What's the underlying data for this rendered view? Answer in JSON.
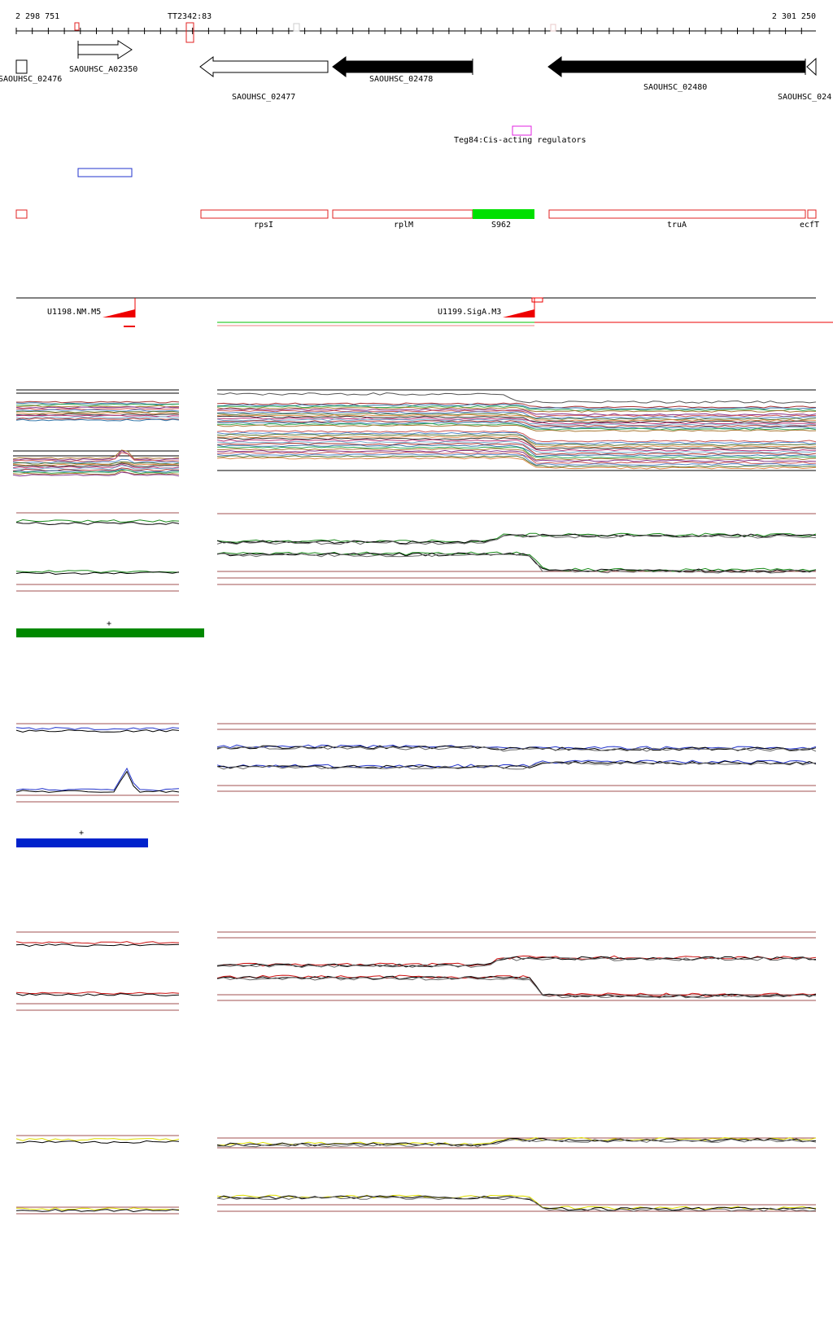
{
  "ruler": {
    "start_label": "2 298 751",
    "end_label": "2 301 250",
    "marker_label": "TT2342:83"
  },
  "genes": [
    {
      "id": "g-02476",
      "label": "SAOUHSC_02476"
    },
    {
      "id": "g-a02350",
      "label": "SAOUHSC_A02350"
    },
    {
      "id": "g-02477",
      "label": "SAOUHSC_02477"
    },
    {
      "id": "g-02478",
      "label": "SAOUHSC_02478"
    },
    {
      "id": "g-02480",
      "label": "SAOUHSC_02480"
    },
    {
      "id": "g-0248x",
      "label": "SAOUHSC_024"
    }
  ],
  "regulator": {
    "label": "Teg84:Cis-acting regulators",
    "color": "#e020e0"
  },
  "annotations": [
    {
      "label": "rpsI"
    },
    {
      "label": "rplM"
    },
    {
      "label": "S962",
      "color": "#00e000"
    },
    {
      "label": "truA"
    },
    {
      "label": "ecfT"
    }
  ],
  "promoters": [
    {
      "label": "U1198.NM.M5"
    },
    {
      "label": "U1199.SigA.M3"
    }
  ],
  "condition_blocks": [
    {
      "name": "green",
      "color": "#008800",
      "line_color": "#1a8a1a",
      "bar_label": "+"
    },
    {
      "name": "blue",
      "color": "#0022cc",
      "line_color": "#2233cc",
      "bar_label": "+"
    },
    {
      "name": "red",
      "color": "#cc0000",
      "line_color": "#cc1111",
      "bar_label": ""
    },
    {
      "name": "yellow",
      "color": "#e0e000",
      "line_color": "#dddd00",
      "bar_label": ""
    }
  ],
  "colors": {
    "feature_outline": "#e02020",
    "guide_line": "#a05050",
    "gene_fill": "#000000",
    "transcript_green": "#80e080"
  }
}
